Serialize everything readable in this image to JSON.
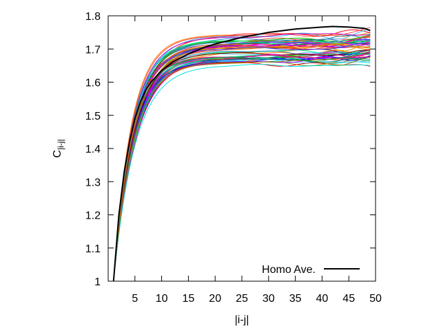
{
  "chart_data": {
    "type": "line",
    "title": "",
    "xlabel": "|i-j|",
    "ylabel_main": "C",
    "ylabel_sub": "|i-j|",
    "xlim": [
      0,
      50
    ],
    "ylim": [
      1.0,
      1.8
    ],
    "x_ticks": [
      5,
      10,
      15,
      20,
      25,
      30,
      35,
      40,
      45,
      50
    ],
    "y_ticks": [
      1,
      1.1,
      1.2,
      1.3,
      1.4,
      1.5,
      1.6,
      1.7,
      1.8
    ],
    "y_tick_labels": [
      "1",
      "1.1",
      "1.2",
      "1.3",
      "1.4",
      "1.5",
      "1.6",
      "1.7",
      "1.8"
    ],
    "grid": false,
    "legend": {
      "position": "bottom-right",
      "entries": [
        "Homo Ave."
      ]
    },
    "highlight": {
      "name": "Homo Ave.",
      "color": "#000000",
      "x": [
        1,
        2,
        3,
        4,
        5,
        6,
        7,
        8,
        10,
        12,
        15,
        18,
        20,
        25,
        30,
        35,
        40,
        42,
        45,
        48,
        49
      ],
      "y": [
        1.0,
        1.2,
        1.33,
        1.42,
        1.49,
        1.54,
        1.575,
        1.6,
        1.635,
        1.66,
        1.685,
        1.705,
        1.715,
        1.735,
        1.75,
        1.76,
        1.766,
        1.768,
        1.766,
        1.762,
        1.755
      ]
    },
    "ensemble": {
      "count": 60,
      "x_range": [
        1,
        49
      ],
      "plateau_range": [
        1.65,
        1.745
      ],
      "colors": [
        "#ff0000",
        "#00c000",
        "#0000ff",
        "#ff00ff",
        "#00e0e0",
        "#e0a000",
        "#a000ff",
        "#ff8000",
        "#008080",
        "#800000",
        "#00ff80",
        "#ff0080",
        "#4040ff",
        "#808000",
        "#40c0ff",
        "#ff4040",
        "#00a040",
        "#c000c0",
        "#e06020",
        "#2080c0"
      ]
    }
  }
}
